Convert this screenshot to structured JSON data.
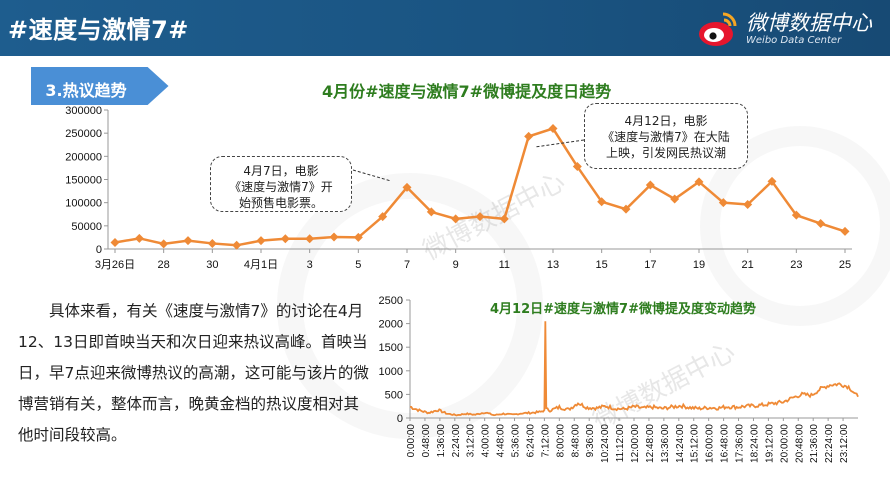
{
  "header": {
    "title": "#速度与激情7#",
    "brand_cn": "微博数据中心",
    "brand_en": "Weibo Data Center",
    "bg_color": "#1a5482"
  },
  "section": {
    "label": "3.热议趋势",
    "color": "#4a8fd6"
  },
  "watermark": "微博数据中心",
  "chart_data": [
    {
      "type": "line",
      "title": "4月份#速度与激情7#微博提及度日趋势",
      "color": "#ef8a36",
      "ylim": [
        0,
        300000
      ],
      "yticks": [
        "0",
        "50000",
        "100000",
        "150000",
        "200000",
        "250000",
        "300000"
      ],
      "xtick_labels": [
        "3月26日",
        "28",
        "30",
        "4月1日",
        "3",
        "5",
        "7",
        "9",
        "11",
        "13",
        "15",
        "17",
        "19",
        "21",
        "23",
        "25"
      ],
      "categories": [
        "3月26日",
        "27",
        "28",
        "29",
        "30",
        "31",
        "4月1日",
        "2",
        "3",
        "4",
        "5",
        "6",
        "7",
        "8",
        "9",
        "10",
        "11",
        "12",
        "13",
        "14",
        "15",
        "16",
        "17",
        "18",
        "19",
        "20",
        "21",
        "22",
        "23",
        "24",
        "25"
      ],
      "values": [
        14000,
        23000,
        11000,
        18000,
        12000,
        8000,
        18000,
        22000,
        22000,
        26000,
        25000,
        70000,
        133000,
        80000,
        65000,
        70000,
        65000,
        243000,
        260000,
        178000,
        102000,
        86000,
        138000,
        108000,
        145000,
        100000,
        96000,
        146000,
        73000,
        55000,
        38000
      ],
      "annotations": [
        {
          "text_lines": [
            "4月7日，电影",
            "《速度与激情7》开",
            "始预售电影票。"
          ]
        },
        {
          "text_lines": [
            "4月12日，电影",
            "《速度与激情7》在大陆",
            "上映，引发网民热议潮"
          ]
        }
      ]
    },
    {
      "type": "line",
      "title": "4月12日#速度与激情7#微博提及度变动趋势",
      "color": "#ef8a36",
      "ylim": [
        0,
        2500
      ],
      "yticks": [
        "0",
        "500",
        "1000",
        "1500",
        "2000",
        "2500"
      ],
      "xtick_labels": [
        "0:00:00",
        "0:48:00",
        "1:36:00",
        "2:24:00",
        "3:12:00",
        "4:00:00",
        "4:48:00",
        "5:36:00",
        "6:24:00",
        "7:12:00",
        "8:00:00",
        "8:48:00",
        "9:36:00",
        "10:24:00",
        "11:12:00",
        "12:00:00",
        "12:48:00",
        "13:36:00",
        "14:24:00",
        "15:12:00",
        "16:00:00",
        "16:48:00",
        "17:36:00",
        "18:24:00",
        "19:12:00",
        "20:00:00",
        "20:48:00",
        "21:36:00",
        "22:24:00",
        "23:12:00"
      ],
      "hours": [
        0,
        0.5,
        1,
        1.5,
        2,
        2.5,
        3,
        3.5,
        4,
        4.5,
        5,
        5.5,
        6,
        6.5,
        7,
        7.2,
        7.25,
        7.3,
        7.5,
        8,
        8.5,
        9,
        9.5,
        10,
        10.5,
        11,
        11.5,
        12,
        12.5,
        13,
        13.5,
        14,
        14.5,
        15,
        15.5,
        16,
        16.5,
        17,
        17.5,
        18,
        18.5,
        19,
        19.5,
        20,
        20.5,
        21,
        21.5,
        22,
        22.5,
        23,
        23.5,
        24
      ],
      "values": [
        240,
        160,
        110,
        170,
        90,
        60,
        90,
        70,
        120,
        60,
        90,
        70,
        100,
        110,
        130,
        170,
        2050,
        190,
        160,
        230,
        180,
        320,
        220,
        210,
        250,
        200,
        190,
        240,
        210,
        230,
        200,
        230,
        260,
        220,
        200,
        220,
        210,
        240,
        230,
        250,
        260,
        280,
        310,
        340,
        430,
        500,
        480,
        620,
        700,
        720,
        660,
        450
      ]
    }
  ],
  "paragraph": "具体来看，有关《速度与激情7》的讨论在4月12、13日即首映当天和次日迎来热议高峰。首映当日，早7点迎来微博热议的高潮，这可能与该片的微博营销有关，整体而言，晚黄金档的热议度相对其他时间段较高。"
}
